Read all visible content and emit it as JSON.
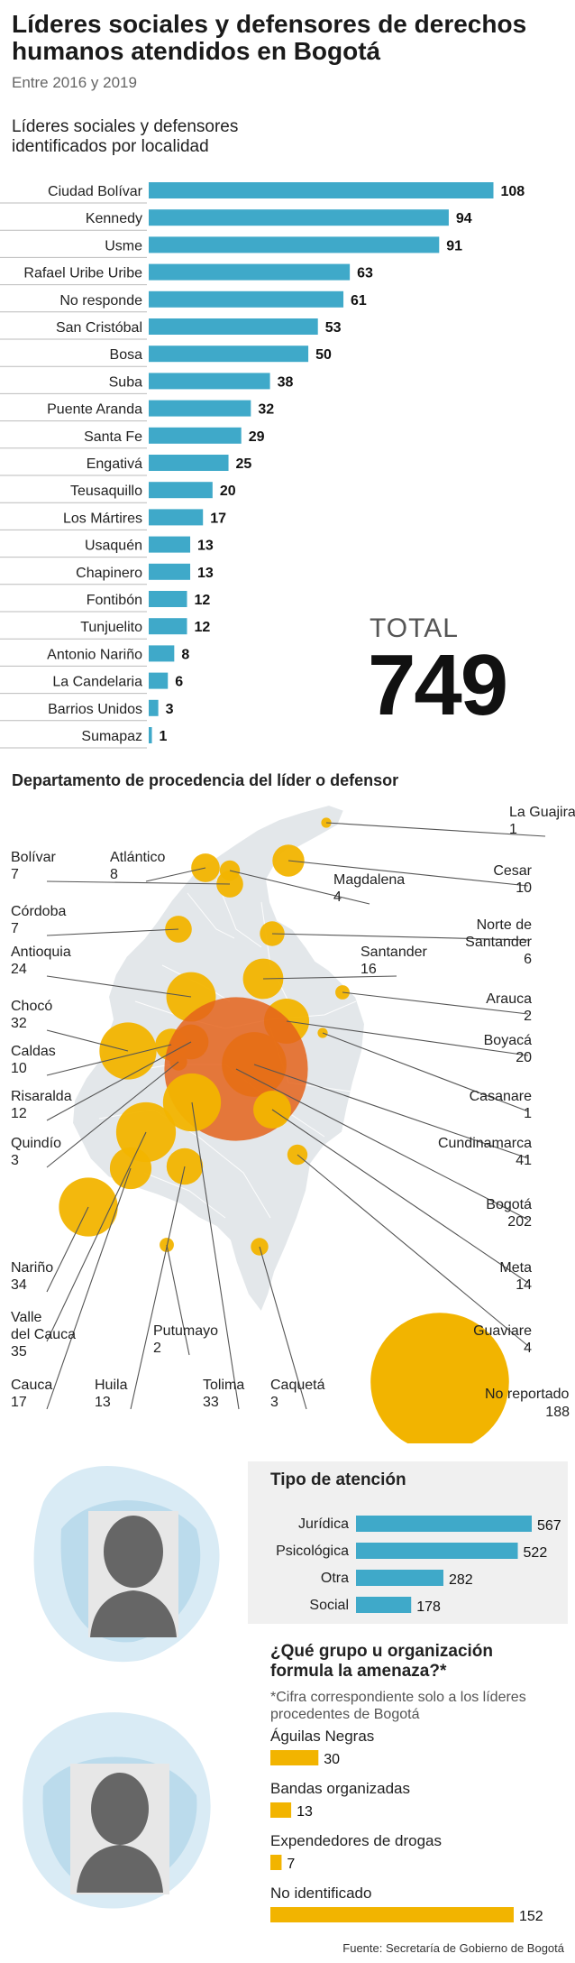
{
  "header": {
    "title": "Líderes sociales y defensores de derechos humanos atendidos en Bogotá",
    "subtitle": "Entre 2016 y 2019"
  },
  "chart_data": [
    {
      "type": "bar",
      "title": "Líderes sociales y defensores identificados por localidad",
      "orientation": "horizontal",
      "color": "#3fa9c9",
      "categories": [
        "Ciudad Bolívar",
        "Kennedy",
        "Usme",
        "Rafael Uribe Uribe",
        "No responde",
        "San Cristóbal",
        "Bosa",
        "Suba",
        "Puente Aranda",
        "Santa Fe",
        "Engativá",
        "Teusaquillo",
        "Los Mártires",
        "Usaquén",
        "Chapinero",
        "Fontibón",
        "Tunjuelito",
        "Antonio Nariño",
        "La Candelaria",
        "Barrios Unidos",
        "Sumapaz"
      ],
      "values": [
        108,
        94,
        91,
        63,
        61,
        53,
        50,
        38,
        32,
        29,
        25,
        20,
        17,
        13,
        13,
        12,
        12,
        8,
        6,
        3,
        1
      ],
      "xlim": [
        0,
        120
      ]
    },
    {
      "type": "map-bubble",
      "title": "Departamento de procedencia del líder o defensor",
      "color": "#f2b400",
      "highlight_color": "#e4631b",
      "departments": [
        {
          "name": "La Guajira",
          "value": 1
        },
        {
          "name": "Cesar",
          "value": 10
        },
        {
          "name": "Magdalena",
          "value": 4
        },
        {
          "name": "Atlántico",
          "value": 8
        },
        {
          "name": "Bolívar",
          "value": 7
        },
        {
          "name": "Córdoba",
          "value": 7
        },
        {
          "name": "Norte de Santander",
          "value": 6
        },
        {
          "name": "Santander",
          "value": 16
        },
        {
          "name": "Antioquia",
          "value": 24
        },
        {
          "name": "Arauca",
          "value": 2
        },
        {
          "name": "Chocó",
          "value": 32
        },
        {
          "name": "Boyacá",
          "value": 20
        },
        {
          "name": "Caldas",
          "value": 10
        },
        {
          "name": "Casanare",
          "value": 1
        },
        {
          "name": "Risaralda",
          "value": 12
        },
        {
          "name": "Cundinamarca",
          "value": 41
        },
        {
          "name": "Quindío",
          "value": 3
        },
        {
          "name": "Bogotá",
          "value": 202
        },
        {
          "name": "Meta",
          "value": 14
        },
        {
          "name": "Nariño",
          "value": 34
        },
        {
          "name": "Guaviare",
          "value": 4
        },
        {
          "name": "Valle del Cauca",
          "value": 35
        },
        {
          "name": "Putumayo",
          "value": 2
        },
        {
          "name": "Cauca",
          "value": 17
        },
        {
          "name": "Huila",
          "value": 13
        },
        {
          "name": "Tolima",
          "value": 33
        },
        {
          "name": "Caquetá",
          "value": 3
        },
        {
          "name": "No reportado",
          "value": 188
        }
      ]
    },
    {
      "type": "bar",
      "title": "Tipo de atención",
      "orientation": "horizontal",
      "color": "#3fa9c9",
      "categories": [
        "Jurídica",
        "Psicológica",
        "Otra",
        "Social"
      ],
      "values": [
        567,
        522,
        282,
        178
      ]
    },
    {
      "type": "bar",
      "title": "¿Qué grupo u organización formula la amenaza?*",
      "orientation": "horizontal",
      "color": "#f2b400",
      "categories": [
        "Águilas Negras",
        "Bandas organizadas",
        "Expendedores de drogas",
        "No identificado"
      ],
      "values": [
        30,
        13,
        7,
        152
      ]
    }
  ],
  "total": {
    "label": "TOTAL",
    "value": "749"
  },
  "amenaza_note": "*Cifra correspondiente solo a los líderes procedentes de Bogotá",
  "source": "Fuente: Secretaría de Gobierno de Bogotá",
  "icons": {
    "portrait_top": "person-silhouette-icon",
    "portrait_bottom": "person-silhouette-icon"
  },
  "colors": {
    "blue": "#3fa9c9",
    "gold": "#f2b400",
    "map_fill": "#e3e7ea",
    "orange": "#e4631b"
  }
}
